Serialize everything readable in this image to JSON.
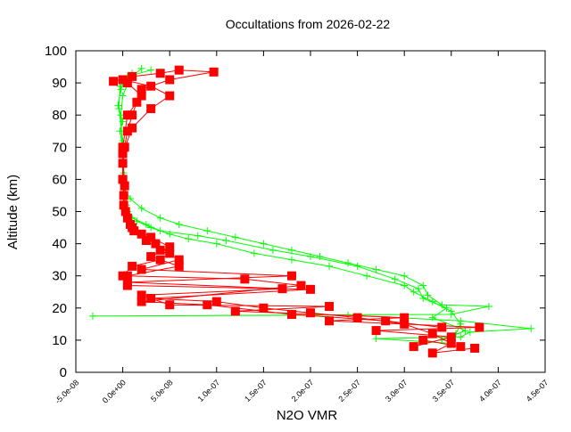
{
  "chart_data": {
    "type": "line",
    "title": "Occultations from 2026-02-22",
    "xlabel": "N2O VMR",
    "ylabel": "Altitude (km)",
    "xlim": [
      -5e-08,
      4.5e-07
    ],
    "ylim": [
      0,
      100
    ],
    "grid": false,
    "legend": "none",
    "x_tick_labels": [
      "-5.0e-08",
      "0.0e+00",
      "5.0e-08",
      "1.0e-07",
      "1.5e-07",
      "2.0e-07",
      "2.5e-07",
      "3.0e-07",
      "3.5e-07",
      "4.0e-07",
      "4.5e-07"
    ],
    "x_ticks": [
      -5e-08,
      0,
      5e-08,
      1e-07,
      1.5e-07,
      2e-07,
      2.5e-07,
      3e-07,
      3.5e-07,
      4e-07,
      4.5e-07
    ],
    "y_tick_labels": [
      "0",
      "10",
      "20",
      "30",
      "40",
      "50",
      "60",
      "70",
      "80",
      "90",
      "100"
    ],
    "y_ticks": [
      0,
      10,
      20,
      30,
      40,
      50,
      60,
      70,
      80,
      90,
      100
    ],
    "series": [
      {
        "color": "#00ff00",
        "marker": "plus",
        "profiles": [
          [
            [
              3e-08,
              94
            ],
            [
              5e-09,
              92
            ],
            [
              -2e-09,
              88
            ],
            [
              -5e-09,
              83
            ],
            [
              0,
              78
            ],
            [
              -3e-09,
              75
            ],
            [
              0,
              70
            ],
            [
              0,
              65
            ],
            [
              0,
              60
            ],
            [
              2e-09,
              57
            ],
            [
              8e-09,
              54
            ],
            [
              2e-08,
              51
            ],
            [
              4e-08,
              48
            ],
            [
              6e-08,
              46
            ],
            [
              9e-08,
              44
            ],
            [
              1.2e-07,
              42
            ],
            [
              1.5e-07,
              40
            ],
            [
              1.8e-07,
              38
            ],
            [
              2.1e-07,
              36
            ],
            [
              2.4e-07,
              34
            ],
            [
              2.7e-07,
              32
            ],
            [
              3e-07,
              30
            ],
            [
              3.2e-07,
              27
            ],
            [
              3.25e-07,
              24
            ],
            [
              3.4e-07,
              21
            ],
            [
              3.9e-07,
              20.5
            ],
            [
              3.5e-07,
              18
            ],
            [
              -3.2e-08,
              17.5
            ],
            [
              2.4e-07,
              17.8
            ],
            [
              3.6e-07,
              16
            ],
            [
              4.35e-07,
              13.6
            ],
            [
              3.7e-07,
              12.5
            ],
            [
              3.6e-07,
              11
            ],
            [
              2.7e-07,
              10.5
            ],
            [
              3.5e-07,
              9
            ]
          ],
          [
            [
              1e-08,
              93
            ],
            [
              0,
              86
            ],
            [
              -2e-09,
              80
            ],
            [
              0,
              68
            ],
            [
              1e-09,
              58
            ],
            [
              5e-09,
              50
            ],
            [
              1.5e-08,
              47
            ],
            [
              3e-08,
              45
            ],
            [
              5e-08,
              43
            ],
            [
              7e-08,
              41.5
            ],
            [
              1e-07,
              40
            ],
            [
              1.4e-07,
              37
            ],
            [
              1.8e-07,
              35
            ],
            [
              2.2e-07,
              33
            ],
            [
              2.6e-07,
              30
            ],
            [
              3e-07,
              27
            ],
            [
              3.1e-07,
              25
            ],
            [
              3.3e-07,
              22
            ],
            [
              3.5e-07,
              19
            ],
            [
              3.6e-07,
              15
            ],
            [
              3.55e-07,
              12
            ]
          ],
          [
            [
              2e-08,
              94.5
            ],
            [
              -3e-09,
              89
            ],
            [
              -4e-09,
              82
            ],
            [
              0,
              72
            ],
            [
              1e-09,
              62
            ],
            [
              4e-09,
              52
            ],
            [
              1e-08,
              48
            ],
            [
              2.5e-08,
              46
            ],
            [
              4e-08,
              44
            ],
            [
              8e-08,
              42.5
            ],
            [
              1.1e-07,
              41
            ],
            [
              1.6e-07,
              38
            ],
            [
              2e-07,
              36
            ],
            [
              2.5e-07,
              33
            ],
            [
              2.9e-07,
              29
            ],
            [
              3.15e-07,
              26
            ],
            [
              3.2e-07,
              23
            ],
            [
              3.45e-07,
              20
            ],
            [
              3.3e-07,
              17
            ],
            [
              3.65e-07,
              13
            ],
            [
              3.4e-07,
              10
            ]
          ]
        ]
      },
      {
        "color": "#ff0000",
        "marker": "filled-square",
        "profiles": [
          [
            [
              -1e-08,
              90.5
            ],
            [
              1e-08,
              92
            ],
            [
              4e-08,
              93
            ],
            [
              6e-08,
              94
            ],
            [
              9.7e-08,
              93.4
            ],
            [
              5e-08,
              91
            ],
            [
              2e-08,
              88
            ],
            [
              1.5e-08,
              84
            ],
            [
              1e-08,
              80
            ],
            [
              5e-09,
              75
            ],
            [
              2e-09,
              70
            ],
            [
              0,
              65
            ],
            [
              0,
              60
            ],
            [
              1e-09,
              55
            ],
            [
              3e-09,
              50
            ],
            [
              8e-09,
              46
            ],
            [
              2e-08,
              43
            ],
            [
              3.5e-08,
              40
            ],
            [
              5e-08,
              37
            ],
            [
              4e-08,
              35
            ],
            [
              1e-08,
              33
            ],
            [
              0,
              30
            ],
            [
              5e-09,
              27
            ],
            [
              2e-07,
              25.8
            ],
            [
              3e-08,
              23
            ],
            [
              1e-07,
              22
            ],
            [
              1.5e-07,
              20
            ],
            [
              2e-07,
              18.5
            ],
            [
              2.5e-07,
              17
            ],
            [
              3e-07,
              15
            ],
            [
              3.3e-07,
              12
            ],
            [
              3.5e-07,
              9
            ],
            [
              3.3e-07,
              6
            ],
            [
              3.75e-07,
              7.5
            ]
          ],
          [
            [
              0,
              91
            ],
            [
              3e-08,
              89
            ],
            [
              5e-08,
              86
            ],
            [
              3e-08,
              82
            ],
            [
              1e-08,
              76
            ],
            [
              0,
              68
            ],
            [
              2e-09,
              58
            ],
            [
              5e-09,
              48
            ],
            [
              1.2e-08,
              44
            ],
            [
              2.5e-08,
              41
            ],
            [
              4e-08,
              38
            ],
            [
              6e-08,
              35
            ],
            [
              2e-08,
              32
            ],
            [
              1.8e-07,
              30
            ],
            [
              5e-09,
              28
            ],
            [
              1.7e-07,
              26
            ],
            [
              2e-08,
              24
            ],
            [
              5e-08,
              21
            ],
            [
              2.2e-07,
              20.5
            ],
            [
              1.2e-07,
              19
            ],
            [
              3e-07,
              17
            ],
            [
              2.2e-07,
              16
            ],
            [
              3.8e-07,
              14
            ],
            [
              2.7e-07,
              13
            ],
            [
              3.5e-07,
              11
            ],
            [
              3.1e-07,
              8
            ]
          ],
          [
            [
              5e-09,
              90
            ],
            [
              2e-08,
              86
            ],
            [
              5e-09,
              80
            ],
            [
              0,
              70
            ],
            [
              0,
              60
            ],
            [
              1e-09,
              52
            ],
            [
              1e-08,
              45
            ],
            [
              3e-08,
              42
            ],
            [
              5e-08,
              39
            ],
            [
              3e-08,
              36
            ],
            [
              6e-08,
              33
            ],
            [
              5e-09,
              30
            ],
            [
              1.3e-07,
              29
            ],
            [
              1.9e-07,
              27
            ],
            [
              2e-08,
              22
            ],
            [
              9e-08,
              21
            ],
            [
              1.8e-07,
              18
            ],
            [
              2.8e-07,
              16
            ],
            [
              3.4e-07,
              14
            ],
            [
              3.2e-07,
              10
            ],
            [
              3.6e-07,
              8
            ]
          ]
        ]
      }
    ]
  }
}
